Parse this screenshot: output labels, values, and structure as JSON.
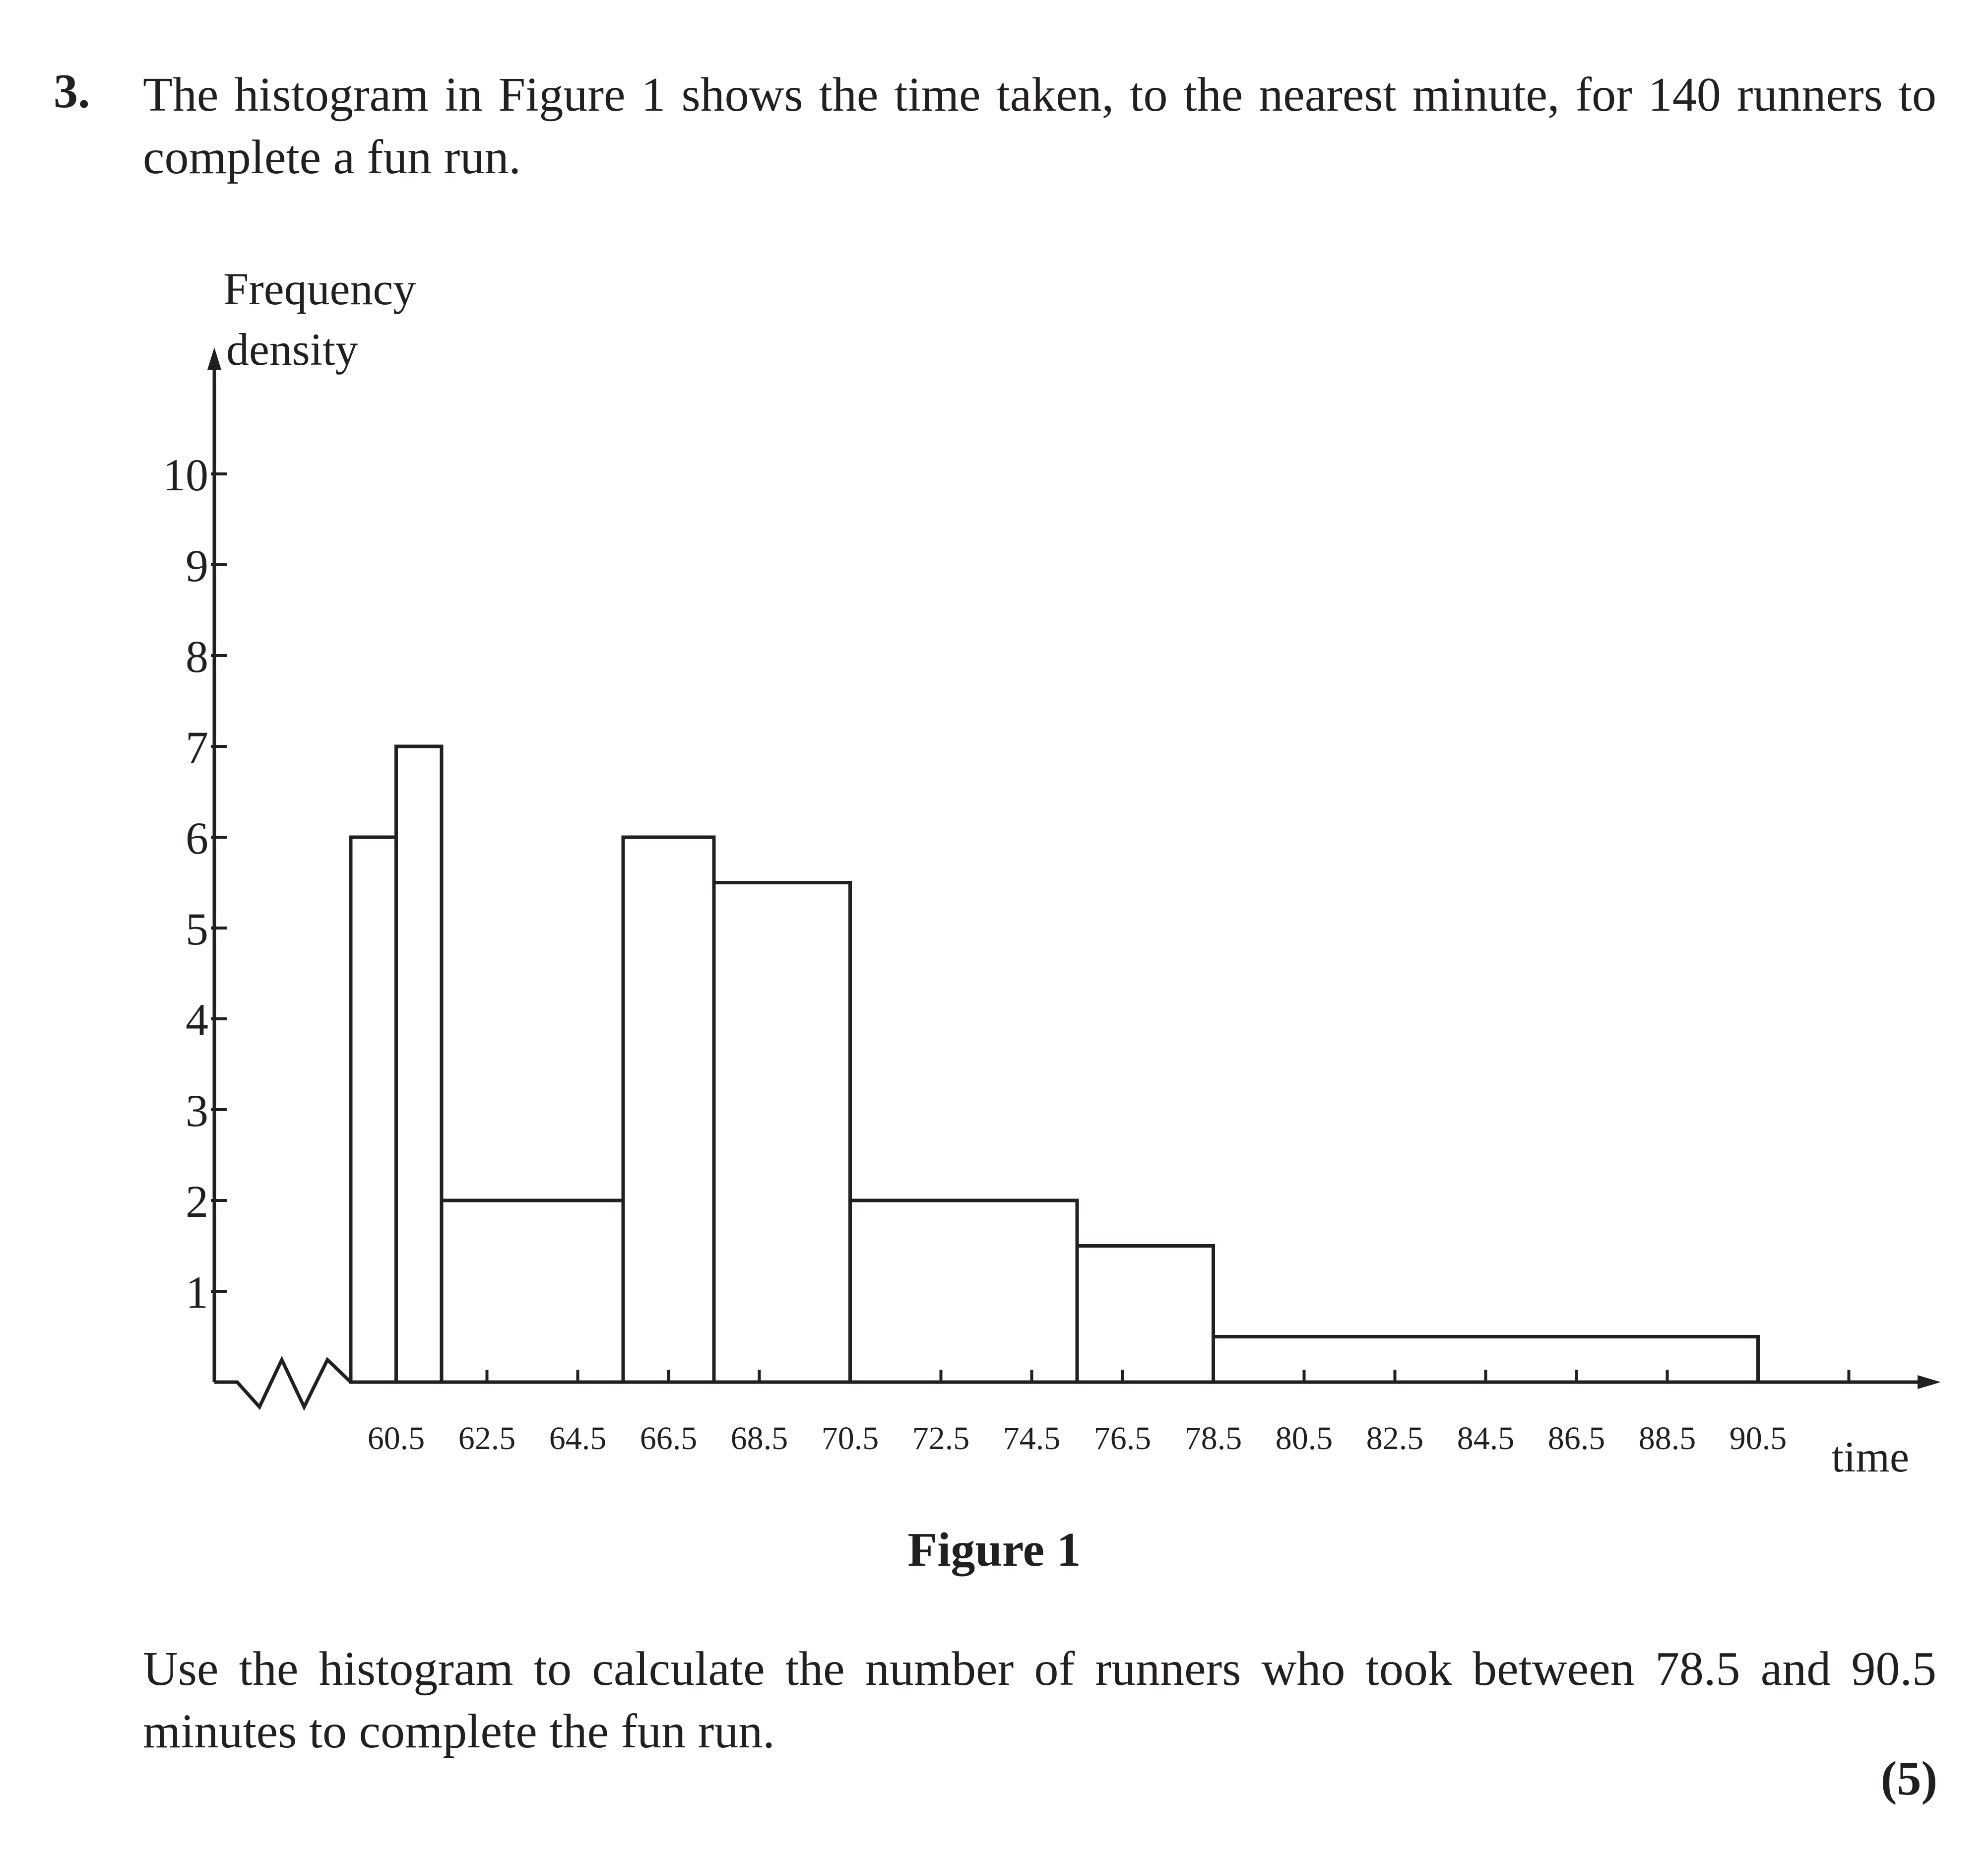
{
  "question": {
    "number": "3.",
    "text": "The histogram in Figure 1 shows the time taken, to the nearest minute, for 140 runners to complete a fun run.",
    "task": "Use the histogram to calculate the number of runners who took between 78.5 and 90.5 minutes to complete the fun run.",
    "marks": "(5)"
  },
  "figure": {
    "caption": "Figure 1"
  },
  "chart_data": {
    "type": "bar",
    "subtype": "histogram",
    "ylabel_line1": "Frequency",
    "ylabel_line2": "density",
    "xlabel": "time",
    "ylim": [
      0,
      10
    ],
    "xlim": [
      59.5,
      91.5
    ],
    "axis_break": true,
    "grid": false,
    "y_ticks": [
      "1",
      "2",
      "3",
      "4",
      "5",
      "6",
      "7",
      "8",
      "9",
      "10"
    ],
    "x_tick_labels": [
      "60.5",
      "62.5",
      "64.5",
      "66.5",
      "68.5",
      "70.5",
      "72.5",
      "74.5",
      "76.5",
      "78.5",
      "80.5",
      "82.5",
      "84.5",
      "86.5",
      "88.5",
      "90.5"
    ],
    "bars": [
      {
        "x_start": 59.5,
        "x_end": 60.5,
        "frequency_density": 6
      },
      {
        "x_start": 60.5,
        "x_end": 61.5,
        "frequency_density": 7
      },
      {
        "x_start": 61.5,
        "x_end": 65.5,
        "frequency_density": 2
      },
      {
        "x_start": 65.5,
        "x_end": 67.5,
        "frequency_density": 6
      },
      {
        "x_start": 67.5,
        "x_end": 70.5,
        "frequency_density": 5.5
      },
      {
        "x_start": 70.5,
        "x_end": 75.5,
        "frequency_density": 2
      },
      {
        "x_start": 75.5,
        "x_end": 78.5,
        "frequency_density": 1.5
      },
      {
        "x_start": 78.5,
        "x_end": 90.5,
        "frequency_density": 0.5
      }
    ]
  }
}
